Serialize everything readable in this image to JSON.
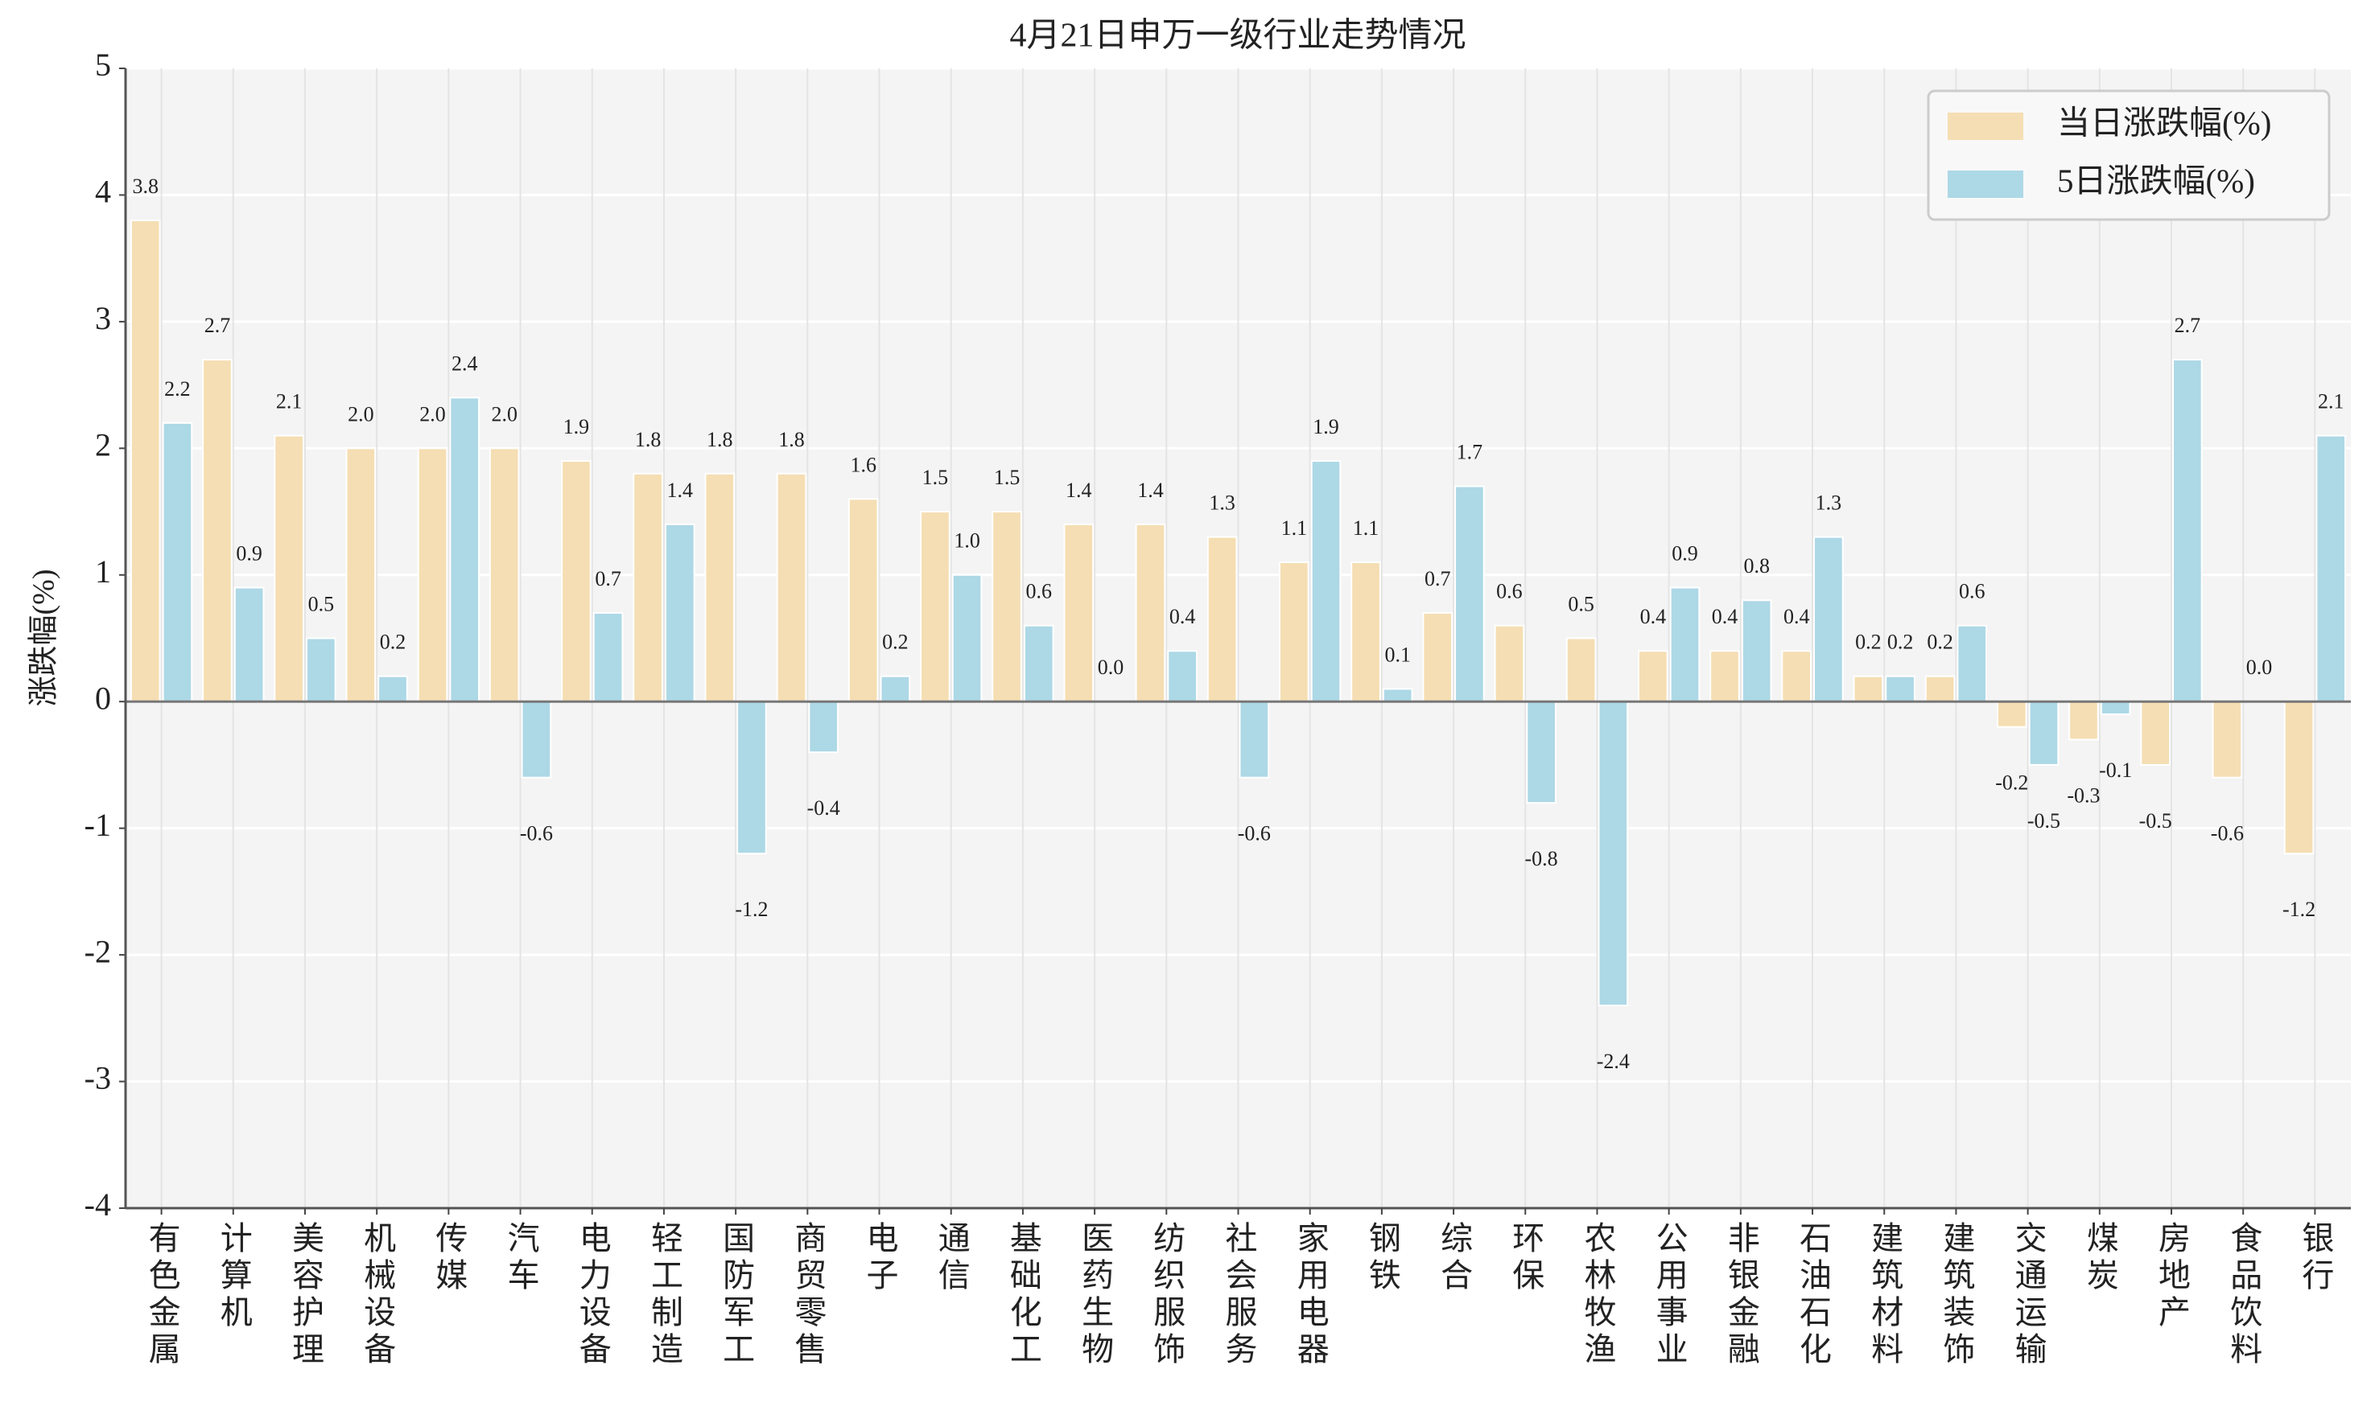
{
  "chart_data": {
    "type": "bar",
    "title": "4月21日申万一级行业走势情况",
    "y_label": "涨跌幅(%)",
    "categories": [
      "有色金属",
      "计算机",
      "美容护理",
      "机械设备",
      "传媒",
      "汽车",
      "电力设备",
      "轻工制造",
      "国防军工",
      "商贸零售",
      "电子",
      "通信",
      "基础化工",
      "医药生物",
      "纺织服饰",
      "社会服务",
      "家用电器",
      "钢铁",
      "综合",
      "环保",
      "农林牧渔",
      "公用事业",
      "非银金融",
      "石油石化",
      "建筑材料",
      "建筑装饰",
      "交通运输",
      "煤炭",
      "房地产",
      "食品饮料",
      "银行"
    ],
    "series": [
      {
        "name": "当日涨跌幅(%)",
        "color": "#f5deb3",
        "values": [
          3.8,
          2.7,
          2.1,
          2.0,
          2.0,
          2.0,
          1.9,
          1.8,
          1.8,
          1.8,
          1.6,
          1.5,
          1.5,
          1.4,
          1.4,
          1.3,
          1.1,
          1.1,
          0.7,
          0.6,
          0.5,
          0.4,
          0.4,
          0.4,
          0.2,
          0.2,
          -0.2,
          -0.3,
          -0.5,
          -0.6,
          -1.2
        ],
        "value_labels": [
          "3.8",
          "2.7",
          "2.1",
          "2.0",
          "2.0",
          "2.0",
          "1.9",
          "1.8",
          "1.8",
          "1.8",
          "1.6",
          "1.5",
          "1.5",
          "1.4",
          "1.4",
          "1.3",
          "1.1",
          "1.1",
          "0.7",
          "0.6",
          "0.5",
          "0.4",
          "0.4",
          "0.4",
          "0.2",
          "0.2",
          "-0.2",
          "-0.3",
          "-0.5",
          "-0.6",
          "-1.2"
        ]
      },
      {
        "name": "5日涨跌幅(%)",
        "color": "#add8e6",
        "values": [
          2.2,
          0.9,
          0.5,
          0.2,
          2.4,
          -0.6,
          0.7,
          1.4,
          -1.2,
          -0.4,
          0.2,
          1.0,
          0.6,
          0.0,
          0.4,
          -0.6,
          1.9,
          0.1,
          1.7,
          -0.8,
          -2.4,
          0.9,
          0.8,
          1.3,
          0.2,
          0.6,
          -0.5,
          -0.1,
          2.7,
          0.0,
          2.1
        ],
        "value_labels": [
          "2.2",
          "0.9",
          "0.5",
          "0.2",
          "2.4",
          "-0.6",
          "0.7",
          "1.4",
          "-1.2",
          "-0.4",
          "0.2",
          "1.0",
          "0.6",
          "0.0",
          "0.4",
          "-0.6",
          "1.9",
          "0.1",
          "1.7",
          "-0.8",
          "-2.4",
          "0.9",
          "0.8",
          "1.3",
          "0.2",
          "0.6",
          "-0.5",
          "-0.1",
          "2.7",
          "0.0",
          "2.1"
        ]
      }
    ],
    "ylim": [
      -4,
      5
    ],
    "yticks": [
      -4,
      -3,
      -2,
      -1,
      0,
      1,
      2,
      3,
      4,
      5
    ],
    "grid": true,
    "legend": "upper right"
  }
}
